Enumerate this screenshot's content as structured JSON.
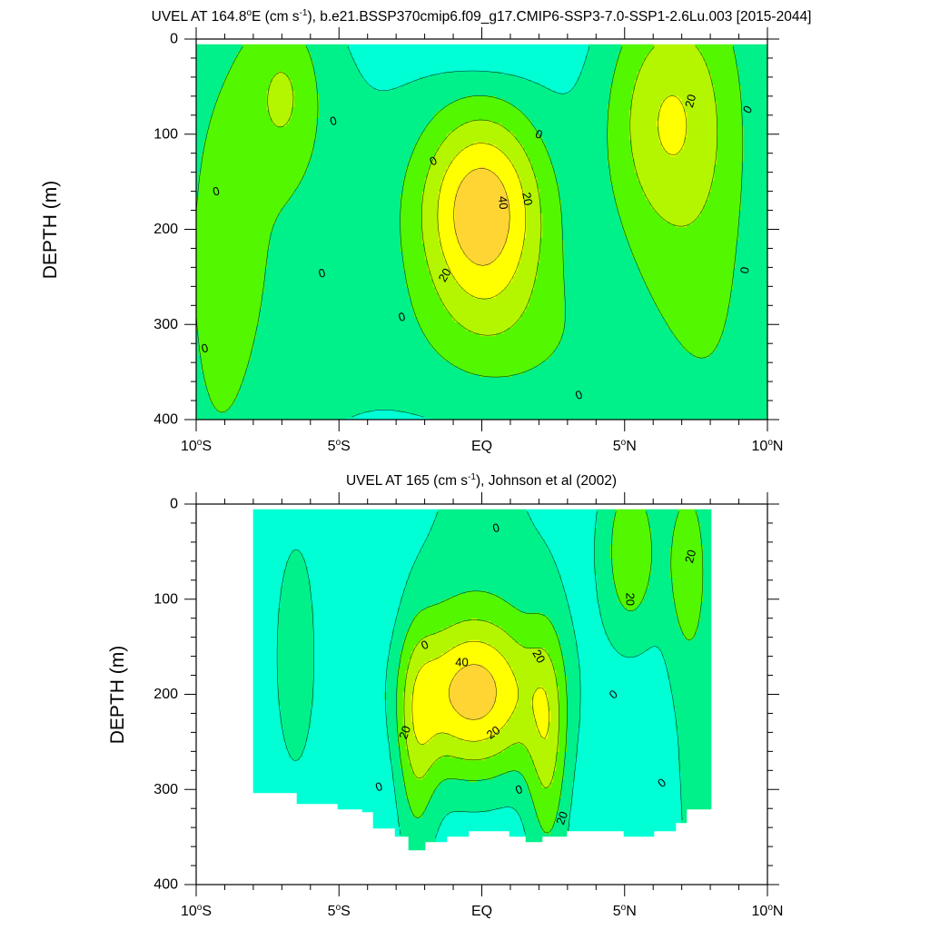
{
  "chart_data": [
    {
      "type": "contour",
      "title": "UVEL AT 164.8°E (cm s⁻¹), b.e21.BSSP370cmip6.f09_g17.CMIP6-SSP3-7.0-SSP1-2.6Lu.003 [2015-2044]",
      "title_parts": {
        "pre": "UVEL AT 164.8",
        "deg": "o",
        "mid": "E (cm s",
        "sup": "-1",
        "post": "), b.e21.BSSP370cmip6.f09_g17.CMIP6-SSP3-7.0-SSP1-2.6Lu.003 [2015-2044]"
      },
      "ylabel": "DEPTH (m)",
      "xlim": [
        -10,
        10
      ],
      "ylim": [
        400,
        0
      ],
      "xticks": [
        {
          "value": -10,
          "num": "10",
          "deg": "o",
          "hemi": "S"
        },
        {
          "value": -5,
          "num": "5",
          "deg": "o",
          "hemi": "S"
        },
        {
          "value": 0,
          "num": "EQ",
          "deg": "",
          "hemi": ""
        },
        {
          "value": 5,
          "num": "5",
          "deg": "o",
          "hemi": "N"
        },
        {
          "value": 10,
          "num": "10",
          "deg": "o",
          "hemi": "N"
        }
      ],
      "yticks": [
        0,
        100,
        200,
        300,
        400
      ],
      "contour_interval": 10,
      "field": {
        "background": -5,
        "data_extent": {
          "x": [
            -10,
            10
          ],
          "y": [
            5,
            400
          ]
        },
        "features": [
          {
            "x": 0.0,
            "y": 180,
            "sx": 1.6,
            "sy": 78,
            "amp": 52
          },
          {
            "x": -6.9,
            "y": 55,
            "sx": 0.9,
            "sy": 60,
            "amp": 17
          },
          {
            "x": 6.3,
            "y": 85,
            "sx": 1.5,
            "sy": 95,
            "amp": 30
          },
          {
            "x": -9.3,
            "y": 250,
            "sx": 1.6,
            "sy": 300,
            "amp": 15
          },
          {
            "x": 8.2,
            "y": 150,
            "sx": 1.5,
            "sy": 260,
            "amp": 12
          },
          {
            "x": -5.8,
            "y": 200,
            "sx": 2.3,
            "sy": 170,
            "amp": 9
          },
          {
            "x": 0.5,
            "y": 320,
            "sx": 2.7,
            "sy": 60,
            "amp": 11
          },
          {
            "x": 5.5,
            "y": 320,
            "sx": 3.0,
            "sy": 100,
            "amp": 7
          },
          {
            "x": 0.2,
            "y": 0,
            "sx": 1.6,
            "sy": 30,
            "amp": -8
          }
        ]
      },
      "contour_labels": [
        {
          "x": -5.2,
          "y": 86,
          "text": "0",
          "rot": -15
        },
        {
          "x": -9.3,
          "y": 160,
          "text": "0",
          "rot": -15
        },
        {
          "x": -5.6,
          "y": 246,
          "text": "0",
          "rot": -15
        },
        {
          "x": -9.7,
          "y": 325,
          "text": "0",
          "rot": -15
        },
        {
          "x": -2.8,
          "y": 292,
          "text": "0",
          "rot": -15
        },
        {
          "x": -1.7,
          "y": 128,
          "text": "0",
          "rot": -25
        },
        {
          "x": 2.0,
          "y": 100,
          "text": "0",
          "rot": 20
        },
        {
          "x": 3.4,
          "y": 374,
          "text": "0",
          "rot": -20
        },
        {
          "x": 9.3,
          "y": 74,
          "text": "0",
          "rot": -60
        },
        {
          "x": 9.2,
          "y": 243,
          "text": "0",
          "rot": -80
        },
        {
          "x": 7.3,
          "y": 65,
          "text": "20",
          "rot": -75
        },
        {
          "x": 1.6,
          "y": 168,
          "text": "20",
          "rot": 80
        },
        {
          "x": -1.3,
          "y": 248,
          "text": "20",
          "rot": -60
        },
        {
          "x": 0.75,
          "y": 172,
          "text": "40",
          "rot": 85
        }
      ]
    },
    {
      "type": "contour",
      "title": "UVEL AT 165 (cm s⁻¹), Johnson et al (2002)",
      "title_parts": {
        "pre": "UVEL AT 165 (cm s",
        "deg": "",
        "mid": "",
        "sup": "-1",
        "post": "), Johnson et al (2002)"
      },
      "ylabel": "DEPTH (m)",
      "xlim": [
        -10,
        10
      ],
      "ylim": [
        400,
        0
      ],
      "xticks": [
        {
          "value": -10,
          "num": "10",
          "deg": "o",
          "hemi": "S"
        },
        {
          "value": -5,
          "num": "5",
          "deg": "o",
          "hemi": "S"
        },
        {
          "value": 0,
          "num": "EQ",
          "deg": "",
          "hemi": ""
        },
        {
          "value": 5,
          "num": "5",
          "deg": "o",
          "hemi": "N"
        },
        {
          "value": 10,
          "num": "10",
          "deg": "o",
          "hemi": "N"
        }
      ],
      "yticks": [
        0,
        100,
        200,
        300,
        400
      ],
      "contour_interval": 10,
      "field": {
        "background": -6,
        "data_extent": {
          "x": [
            -8,
            8
          ],
          "y": [
            5,
            365
          ]
        },
        "bottom_mask": [
          [
            -8,
            305
          ],
          [
            -6.8,
            305
          ],
          [
            -6.5,
            315
          ],
          [
            -5.5,
            315
          ],
          [
            -5.0,
            320
          ],
          [
            -4.2,
            325
          ],
          [
            -3.8,
            340
          ],
          [
            -3.0,
            350
          ],
          [
            -2.6,
            365
          ],
          [
            -2.0,
            355
          ],
          [
            -1.6,
            355
          ],
          [
            -1.2,
            350
          ],
          [
            -0.5,
            345
          ],
          [
            0.5,
            345
          ],
          [
            1.0,
            350
          ],
          [
            1.5,
            355
          ],
          [
            2.1,
            350
          ],
          [
            3.0,
            345
          ],
          [
            4.0,
            345
          ],
          [
            5.0,
            350
          ],
          [
            6.0,
            345
          ],
          [
            6.8,
            335
          ],
          [
            7.2,
            320
          ],
          [
            8,
            320
          ]
        ],
        "features": [
          {
            "x": -0.3,
            "y": 200,
            "sx": 1.7,
            "sy": 60,
            "amp": 50
          },
          {
            "x": 2.3,
            "y": 260,
            "sx": 0.5,
            "sy": 90,
            "amp": 24
          },
          {
            "x": -2.3,
            "y": 260,
            "sx": 0.5,
            "sy": 90,
            "amp": 20
          },
          {
            "x": 5.2,
            "y": 50,
            "sx": 0.7,
            "sy": 70,
            "amp": 24
          },
          {
            "x": 7.2,
            "y": 60,
            "sx": 0.5,
            "sy": 70,
            "amp": 17
          },
          {
            "x": 0.0,
            "y": 30,
            "sx": 2.0,
            "sy": 90,
            "amp": 8
          },
          {
            "x": -6.5,
            "y": 160,
            "sx": 1.2,
            "sy": 200,
            "amp": 7
          },
          {
            "x": 7.5,
            "y": 220,
            "sx": 1.0,
            "sy": 200,
            "amp": 9
          },
          {
            "x": -3.5,
            "y": 200,
            "sx": 1.0,
            "sy": 100,
            "amp": -6
          },
          {
            "x": 5.8,
            "y": 240,
            "sx": 1.0,
            "sy": 90,
            "amp": -3
          }
        ]
      },
      "contour_labels": [
        {
          "x": 0.5,
          "y": 25,
          "text": "0",
          "rot": -15
        },
        {
          "x": -2.0,
          "y": 148,
          "text": "0",
          "rot": -25
        },
        {
          "x": 4.6,
          "y": 200,
          "text": "0",
          "rot": -40
        },
        {
          "x": -3.6,
          "y": 297,
          "text": "0",
          "rot": -20
        },
        {
          "x": 1.3,
          "y": 300,
          "text": "0",
          "rot": -20
        },
        {
          "x": 6.3,
          "y": 293,
          "text": "0",
          "rot": -40
        },
        {
          "x": 7.3,
          "y": 55,
          "text": "20",
          "rot": -75
        },
        {
          "x": 5.2,
          "y": 100,
          "text": "20",
          "rot": 90
        },
        {
          "x": 2.0,
          "y": 160,
          "text": "20",
          "rot": 60
        },
        {
          "x": -2.7,
          "y": 240,
          "text": "20",
          "rot": -70
        },
        {
          "x": 0.4,
          "y": 240,
          "text": "20",
          "rot": -35
        },
        {
          "x": 2.8,
          "y": 330,
          "text": "20",
          "rot": -70
        },
        {
          "x": -0.7,
          "y": 166,
          "text": "40",
          "rot": 0
        }
      ]
    }
  ],
  "colors": {
    "levels": [
      -20,
      -10,
      0,
      10,
      20,
      30,
      40,
      50
    ],
    "fills": [
      "#2b95ff",
      "#3ee0ff",
      "#00ffd5",
      "#00f08a",
      "#52f700",
      "#b4f500",
      "#ffff00",
      "#ffd534",
      "#ffa73c"
    ],
    "lines": "#000000"
  }
}
